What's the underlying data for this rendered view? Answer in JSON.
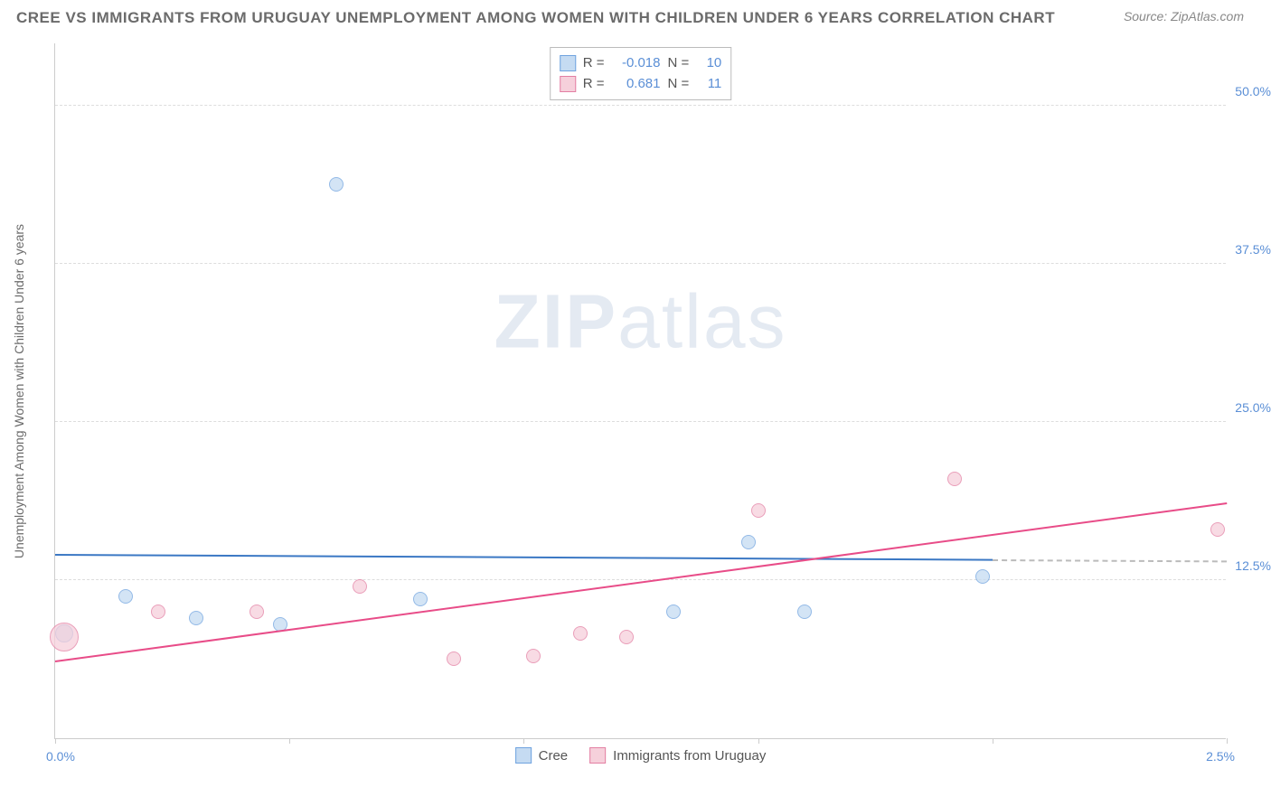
{
  "title": "CREE VS IMMIGRANTS FROM URUGUAY UNEMPLOYMENT AMONG WOMEN WITH CHILDREN UNDER 6 YEARS CORRELATION CHART",
  "source": "Source: ZipAtlas.com",
  "watermark_bold": "ZIP",
  "watermark_light": "atlas",
  "ylabel": "Unemployment Among Women with Children Under 6 years",
  "chart": {
    "type": "scatter",
    "xlim": [
      0.0,
      2.5
    ],
    "ylim": [
      0.0,
      55.0
    ],
    "xticks": [
      0.0,
      0.5,
      1.0,
      1.5,
      2.0,
      2.5
    ],
    "yticks": [
      12.5,
      25.0,
      37.5,
      50.0
    ],
    "xtick_labels": {
      "min": "0.0%",
      "max": "2.5%"
    },
    "ytick_labels": [
      "12.5%",
      "25.0%",
      "37.5%",
      "50.0%"
    ],
    "grid_color": "#dddddd",
    "axis_color": "#cccccc",
    "background_color": "#ffffff",
    "series": [
      {
        "name": "Cree",
        "fill": "#c5dbf2",
        "stroke": "#6fa3df",
        "trend_color": "#3b78c4",
        "r_label": "R =",
        "r_value": "-0.018",
        "n_label": "N =",
        "n_value": "10",
        "trend": {
          "x1": 0.0,
          "y1": 14.4,
          "x2": 2.0,
          "y2": 14.0,
          "ext_x2": 2.5,
          "ext_y2": 13.9
        },
        "points": [
          {
            "x": 0.02,
            "y": 8.3,
            "r": 10
          },
          {
            "x": 0.15,
            "y": 11.2,
            "r": 8
          },
          {
            "x": 0.3,
            "y": 9.5,
            "r": 8
          },
          {
            "x": 0.48,
            "y": 9.0,
            "r": 8
          },
          {
            "x": 0.6,
            "y": 43.8,
            "r": 8
          },
          {
            "x": 0.78,
            "y": 11.0,
            "r": 8
          },
          {
            "x": 1.32,
            "y": 10.0,
            "r": 8
          },
          {
            "x": 1.48,
            "y": 15.5,
            "r": 8
          },
          {
            "x": 1.6,
            "y": 10.0,
            "r": 8
          },
          {
            "x": 1.98,
            "y": 12.8,
            "r": 8
          }
        ]
      },
      {
        "name": "Immigrants from Uruguay",
        "fill": "#f6d0db",
        "stroke": "#e37fa3",
        "trend_color": "#e84c88",
        "r_label": "R =",
        "r_value": "0.681",
        "n_label": "N =",
        "n_value": "11",
        "trend": {
          "x1": 0.0,
          "y1": 6.0,
          "x2": 2.5,
          "y2": 18.5
        },
        "points": [
          {
            "x": 0.02,
            "y": 8.0,
            "r": 16
          },
          {
            "x": 0.22,
            "y": 10.0,
            "r": 8
          },
          {
            "x": 0.43,
            "y": 10.0,
            "r": 8
          },
          {
            "x": 0.65,
            "y": 12.0,
            "r": 8
          },
          {
            "x": 0.85,
            "y": 6.3,
            "r": 8
          },
          {
            "x": 1.02,
            "y": 6.5,
            "r": 8
          },
          {
            "x": 1.12,
            "y": 8.3,
            "r": 8
          },
          {
            "x": 1.22,
            "y": 8.0,
            "r": 8
          },
          {
            "x": 1.5,
            "y": 18.0,
            "r": 8
          },
          {
            "x": 1.92,
            "y": 20.5,
            "r": 8
          },
          {
            "x": 2.48,
            "y": 16.5,
            "r": 8
          }
        ]
      }
    ]
  }
}
